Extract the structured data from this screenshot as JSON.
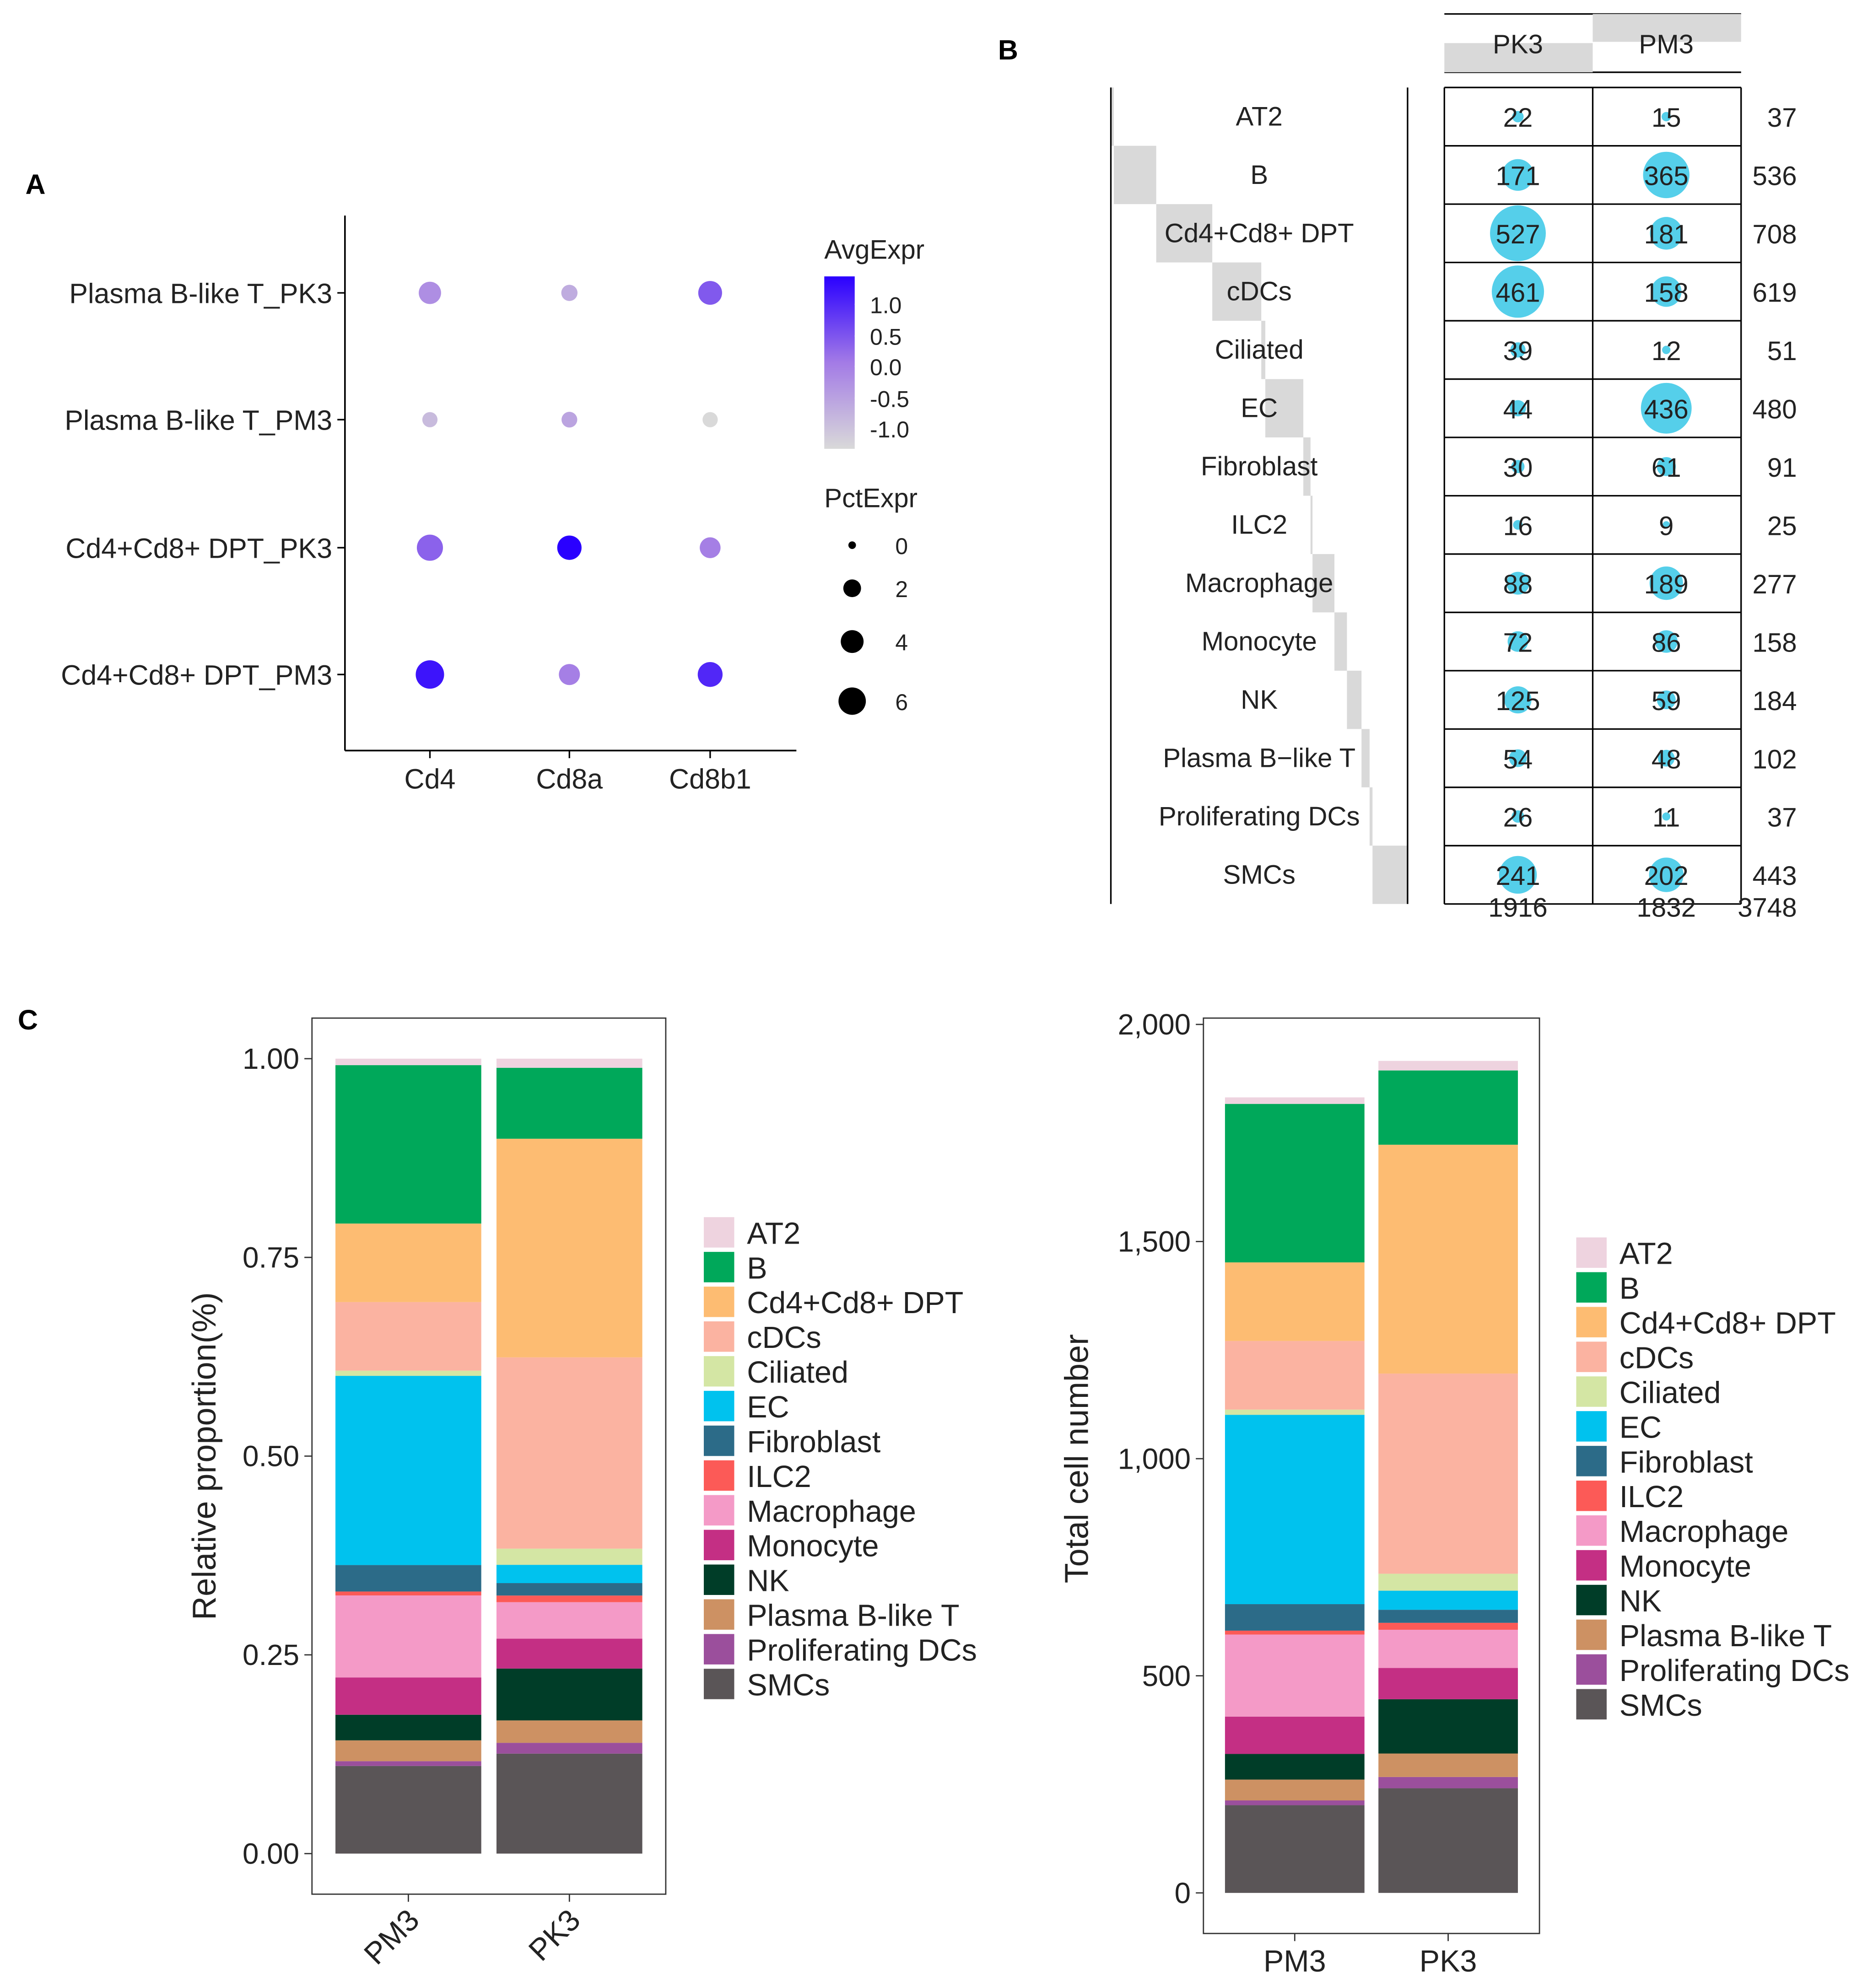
{
  "panels": {
    "a": "A",
    "b": "B",
    "c": "C"
  },
  "chart_data": [
    {
      "type": "dot",
      "panel": "A",
      "x_categories": [
        "Cd4",
        "Cd8a",
        "Cd8b1"
      ],
      "y_categories": [
        "Plasma B-like T_PK3",
        "Plasma B-like T_PM3",
        "Cd4+Cd8+ DPT_PK3",
        "Cd4+Cd8+ DPT_PM3"
      ],
      "avg_expr": [
        [
          -0.2,
          -0.6,
          0.4
        ],
        [
          -0.8,
          -0.5,
          -1.3
        ],
        [
          0.3,
          1.3,
          0.0
        ],
        [
          1.1,
          0.0,
          0.9
        ]
      ],
      "pct_expr": [
        [
          3.8,
          1.5,
          4.4
        ],
        [
          1.2,
          1.4,
          1.2
        ],
        [
          5.5,
          4.6,
          3.1
        ],
        [
          6.6,
          3.2,
          4.9
        ]
      ],
      "color_legend": {
        "title": "AvgExpr",
        "ticks": [
          "1.0",
          "0.5",
          "0.0",
          "-0.5",
          "-1.0"
        ],
        "range": [
          -1.2,
          1.3
        ],
        "low_color": "#d9d9d9",
        "high_color": "#2a00ff"
      },
      "size_legend": {
        "title": "PctExpr",
        "ticks": [
          "0",
          "2",
          "4",
          "6"
        ]
      }
    },
    {
      "type": "balloon-table",
      "panel": "B",
      "columns": [
        "PK3",
        "PM3"
      ],
      "rows": [
        "AT2",
        "B",
        "Cd4+Cd8+ DPT",
        "cDCs",
        "Ciliated",
        "EC",
        "Fibroblast",
        "ILC2",
        "Macrophage",
        "Monocyte",
        "NK",
        "Plasma B−like T",
        "Proliferating DCs",
        "SMCs"
      ],
      "values": [
        [
          22,
          15
        ],
        [
          171,
          365
        ],
        [
          527,
          181
        ],
        [
          461,
          158
        ],
        [
          39,
          12
        ],
        [
          44,
          436
        ],
        [
          30,
          61
        ],
        [
          16,
          9
        ],
        [
          88,
          189
        ],
        [
          72,
          86
        ],
        [
          125,
          59
        ],
        [
          54,
          48
        ],
        [
          26,
          11
        ],
        [
          241,
          202
        ]
      ],
      "row_totals": [
        "37",
        "536",
        "708",
        "619",
        "51",
        "480",
        "91",
        "25",
        "277",
        "158",
        "184",
        "102",
        "37",
        "443"
      ],
      "col_totals": [
        "1916",
        "1832"
      ],
      "grand_total": "3748",
      "balloon_color": "#55cfea",
      "bar_color": "#d9d9d9"
    },
    {
      "type": "bar",
      "stacked": true,
      "panel": "C-left",
      "categories": [
        "PM3",
        "PK3"
      ],
      "ylabel": "Relative proportion(%)",
      "ylim": [
        0,
        1
      ],
      "yticks": [
        "0.00",
        "0.25",
        "0.50",
        "0.75",
        "1.00"
      ],
      "legend": "right"
    },
    {
      "type": "bar",
      "stacked": true,
      "panel": "C-right",
      "categories": [
        "PM3",
        "PK3"
      ],
      "ylabel": "Total cell number",
      "ylim": [
        0,
        2000
      ],
      "yticks": [
        "0",
        "500",
        "1,000",
        "1,500",
        "2,000"
      ],
      "legend": "right"
    }
  ],
  "stack_series": [
    {
      "name": "SMCs",
      "color": "#5a5557",
      "PM3": 202,
      "PK3": 241
    },
    {
      "name": "Proliferating DCs",
      "color": "#9b4f9c",
      "PM3": 11,
      "PK3": 26
    },
    {
      "name": "Plasma B-like T",
      "color": "#cd9163",
      "PM3": 48,
      "PK3": 54
    },
    {
      "name": "NK",
      "color": "#003d28",
      "PM3": 59,
      "PK3": 125
    },
    {
      "name": "Monocyte",
      "color": "#c42f84",
      "PM3": 86,
      "PK3": 72
    },
    {
      "name": "Macrophage",
      "color": "#f49ac7",
      "PM3": 189,
      "PK3": 88
    },
    {
      "name": "ILC2",
      "color": "#fc5a57",
      "PM3": 9,
      "PK3": 16
    },
    {
      "name": "Fibroblast",
      "color": "#2c6b88",
      "PM3": 61,
      "PK3": 30
    },
    {
      "name": "EC",
      "color": "#00c2ee",
      "PM3": 436,
      "PK3": 44
    },
    {
      "name": "Ciliated",
      "color": "#d4e6a4",
      "PM3": 12,
      "PK3": 39
    },
    {
      "name": "cDCs",
      "color": "#fbb3a1",
      "PM3": 158,
      "PK3": 461
    },
    {
      "name": "Cd4+Cd8+ DPT",
      "color": "#fdbc72",
      "PM3": 181,
      "PK3": 527
    },
    {
      "name": "B",
      "color": "#00a85a",
      "PM3": 365,
      "PK3": 171
    },
    {
      "name": "AT2",
      "color": "#eed3df",
      "PM3": 15,
      "PK3": 22
    }
  ]
}
